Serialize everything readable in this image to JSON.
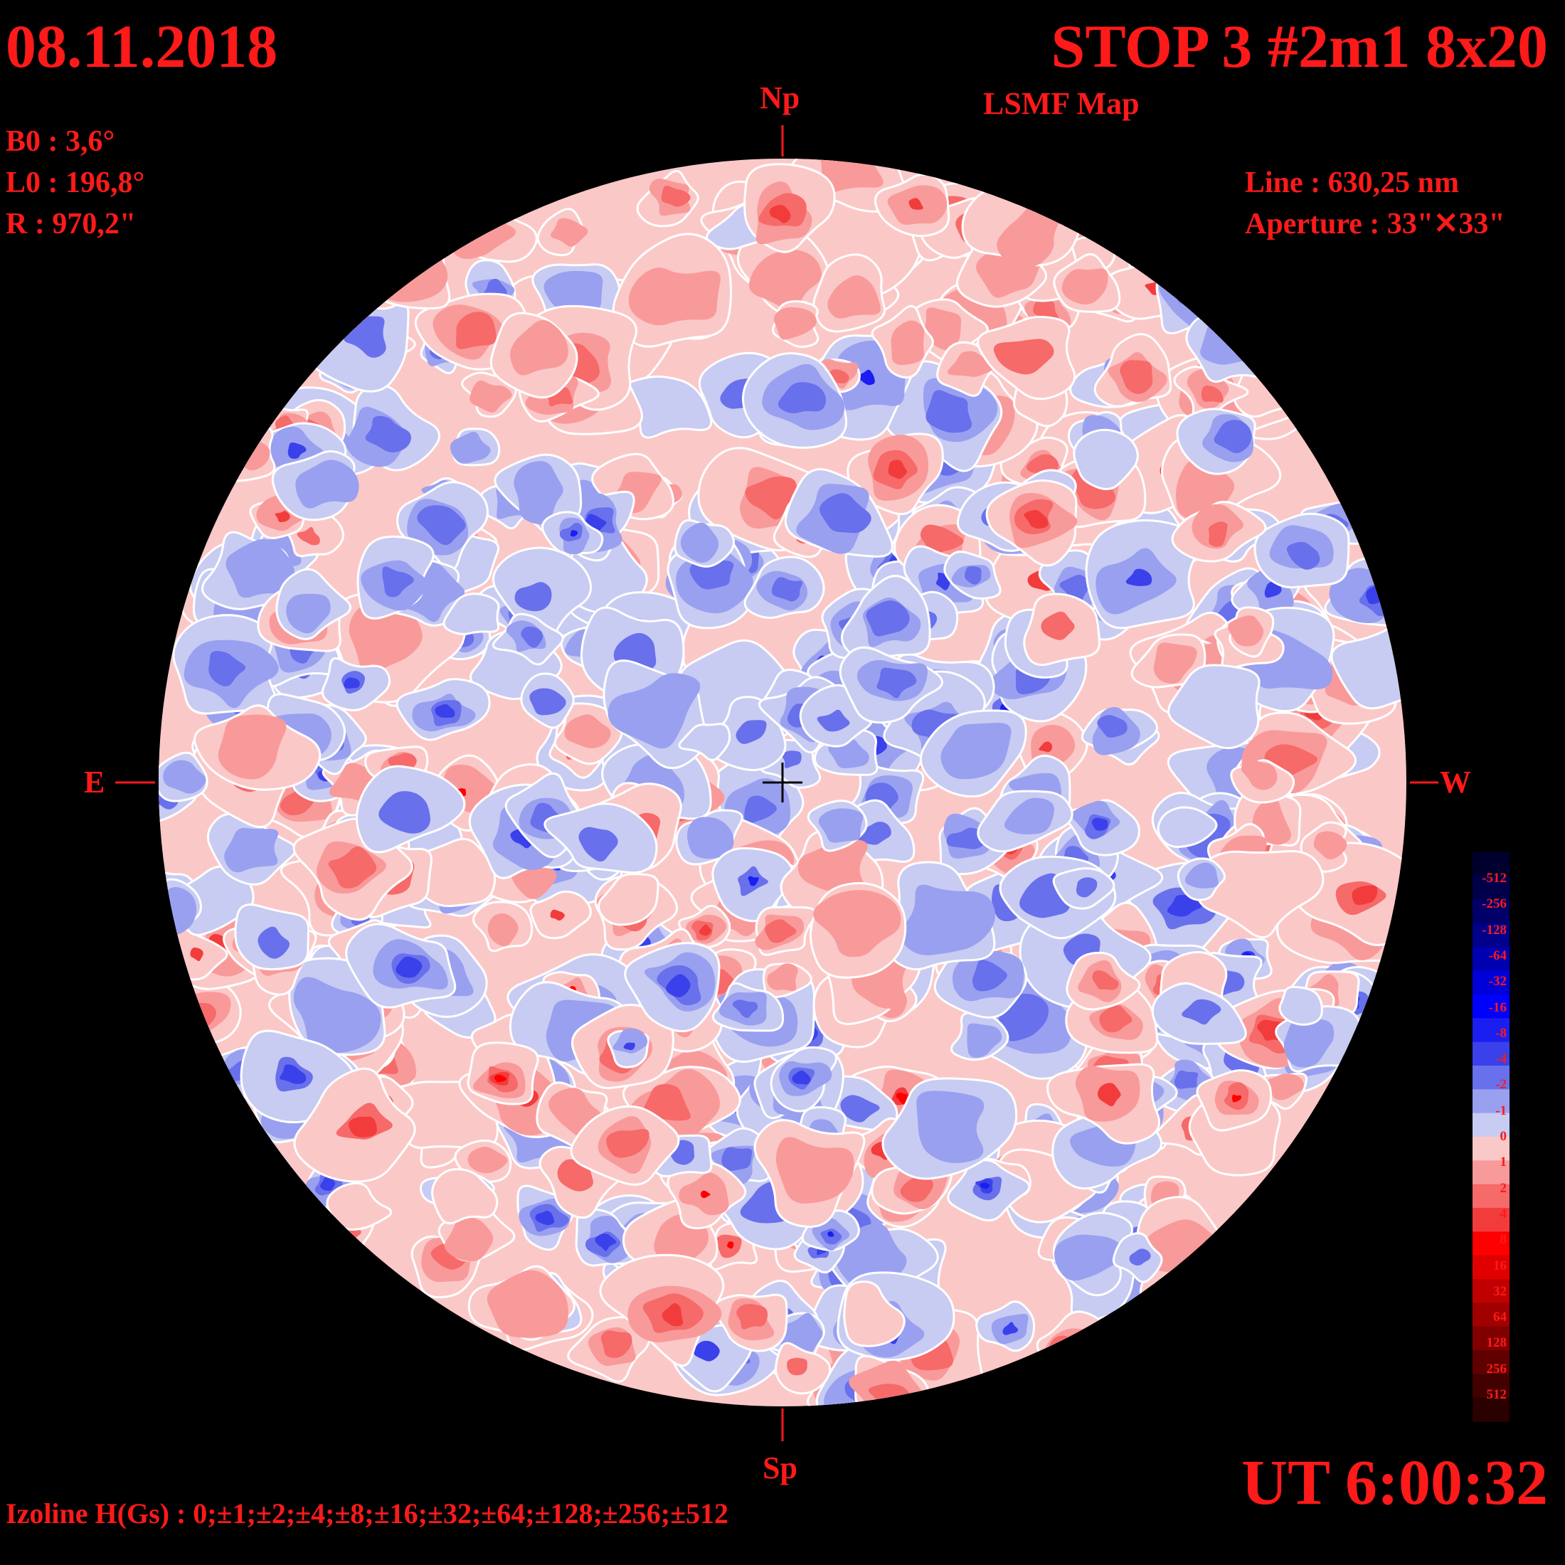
{
  "header": {
    "date": "08.11.2018",
    "title": "STOP 3 #2m1 8x20",
    "subtitle": "LSMF  Map",
    "b0": "B0 : 3,6°",
    "l0": "L0 : 196,8°",
    "r": "R  : 970,2\"",
    "line": "Line :  630,25 nm",
    "aperture": "Aperture : 33\"✕33\""
  },
  "directions": {
    "north": "Np",
    "south": "Sp",
    "east": "E",
    "west": "W"
  },
  "footer": {
    "ut": "UT 6:00:32",
    "izoline": "Izoline H(Gs) : 0;±1;±2;±4;±8;±16;±32;±64;±128;±256;±512"
  },
  "colors": {
    "negative": [
      "#c8ccf2",
      "#9aa0f0",
      "#6870ec",
      "#3a40ea",
      "#1a1ef0",
      "#0000ff",
      "#0000d8",
      "#0000b0",
      "#00008a",
      "#000068",
      "#00004a",
      "#00002e"
    ],
    "positive": [
      "#fbc8c8",
      "#f99a9a",
      "#f66a6a",
      "#f23c3c",
      "#ff0000",
      "#e00000",
      "#c00000",
      "#a00000",
      "#800000",
      "#600000",
      "#420000",
      "#2a0000"
    ],
    "background": "#000000"
  },
  "chart_data": {
    "type": "heatmap",
    "quantity": "H(Gs)",
    "levels": [
      -512,
      -256,
      -128,
      -64,
      -32,
      -16,
      -8,
      -4,
      -2,
      -1,
      0,
      1,
      2,
      4,
      8,
      16,
      32,
      64,
      128,
      256,
      512
    ],
    "colorbar_labels": [
      "-512",
      "-256",
      "-128",
      "-64",
      "-32",
      "-16",
      "-8",
      "-4",
      "-2",
      "-1",
      "0",
      "1",
      "2",
      "4",
      "8",
      "16",
      "32",
      "64",
      "128",
      "256",
      "512"
    ],
    "isolines": [
      0,
      1,
      -1,
      2,
      -2,
      4,
      -4,
      8,
      -8,
      16,
      -16,
      32,
      -32,
      64,
      -64,
      128,
      -128,
      256,
      -256,
      512,
      -512
    ],
    "b0_deg": 3.6,
    "l0_deg": 196.8,
    "radius_arcsec": 970.2,
    "line_nm": 630.25,
    "aperture_arcsec": [
      33,
      33
    ]
  }
}
